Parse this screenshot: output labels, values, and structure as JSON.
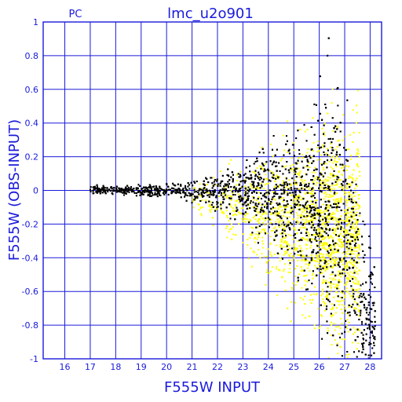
{
  "chart_data": {
    "type": "scatter",
    "title": "lmc_u2o901",
    "corner_label": "PC",
    "xlabel": "F555W INPUT",
    "ylabel": "F555W (OBS-INPUT)",
    "xlim": [
      15.15,
      28.45
    ],
    "ylim": [
      -1,
      1
    ],
    "grid": true,
    "xticks": [
      16,
      17,
      18,
      19,
      20,
      21,
      22,
      23,
      24,
      25,
      26,
      27,
      28
    ],
    "yticks": [
      -1,
      -0.8,
      -0.6,
      -0.4,
      -0.2,
      0,
      0.2,
      0.4,
      0.6,
      0.8,
      1
    ],
    "ytick_labels": [
      "-1",
      "-0.8",
      "-0.6",
      "-0.4",
      "-0.2",
      "0",
      "0.2",
      "0.4",
      "0.6",
      "0.8",
      "1"
    ],
    "colors": {
      "axis": "#1a1adc",
      "grid": "#1a1adc"
    },
    "series": [
      {
        "color": "#000000",
        "density": [
          {
            "x": 17.0,
            "dy_mean": 0.0,
            "spread": 0.012
          },
          {
            "x": 18.0,
            "dy_mean": 0.0,
            "spread": 0.012
          },
          {
            "x": 19.0,
            "dy_mean": 0.0,
            "spread": 0.015
          },
          {
            "x": 20.0,
            "dy_mean": 0.0,
            "spread": 0.02
          },
          {
            "x": 21.0,
            "dy_mean": 0.0,
            "spread": 0.03
          },
          {
            "x": 22.0,
            "dy_mean": 0.0,
            "spread": 0.05
          },
          {
            "x": 23.0,
            "dy_mean": 0.0,
            "spread": 0.08
          },
          {
            "x": 24.0,
            "dy_mean": -0.02,
            "spread": 0.13
          },
          {
            "x": 25.0,
            "dy_mean": -0.03,
            "spread": 0.2
          },
          {
            "x": 26.0,
            "dy_mean": -0.05,
            "spread": 0.3
          },
          {
            "x": 26.5,
            "dy_mean": -0.1,
            "spread": 0.35
          },
          {
            "x": 27.0,
            "dy_mean": -0.25,
            "spread": 0.35
          },
          {
            "x": 27.5,
            "dy_mean": -0.55,
            "spread": 0.3
          },
          {
            "x": 28.0,
            "dy_mean": -0.85,
            "spread": 0.2
          }
        ]
      },
      {
        "color": "#ffff00",
        "density": [
          {
            "x": 21.0,
            "dy_mean": -0.05,
            "spread": 0.04
          },
          {
            "x": 22.0,
            "dy_mean": -0.08,
            "spread": 0.08
          },
          {
            "x": 23.0,
            "dy_mean": -0.1,
            "spread": 0.12
          },
          {
            "x": 24.0,
            "dy_mean": -0.15,
            "spread": 0.17
          },
          {
            "x": 25.0,
            "dy_mean": -0.2,
            "spread": 0.22
          },
          {
            "x": 26.0,
            "dy_mean": -0.2,
            "spread": 0.28
          },
          {
            "x": 27.0,
            "dy_mean": -0.3,
            "spread": 0.3
          }
        ]
      }
    ]
  }
}
